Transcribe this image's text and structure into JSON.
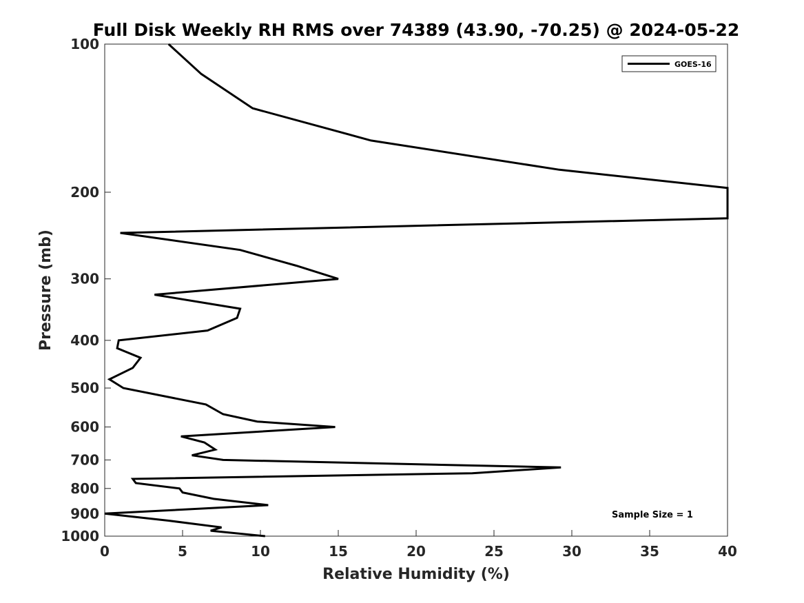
{
  "chart_data": {
    "type": "line",
    "title": "Full Disk Weekly RH RMS over 74389 (43.90, -70.25) @ 2024-05-22",
    "xlabel": "Relative Humidity (%)",
    "ylabel": "Pressure (mb)",
    "xlim": [
      0,
      40
    ],
    "ylim": [
      100,
      1000
    ],
    "yscale": "log",
    "y_reversed": true,
    "xticks": [
      0,
      5,
      10,
      15,
      20,
      25,
      30,
      35,
      40
    ],
    "yticks": [
      100,
      200,
      300,
      400,
      500,
      600,
      700,
      800,
      900,
      1000
    ],
    "grid": false,
    "legend": {
      "position": "top-right",
      "entries": [
        "GOES-16"
      ]
    },
    "annotation": "Sample Size = 1",
    "series": [
      {
        "name": "GOES-16",
        "color": "#000000",
        "x": [
          4.1,
          6.2,
          9.5,
          17.1,
          29.2,
          40.0,
          40.0,
          1.0,
          8.7,
          12.3,
          15.0,
          3.2,
          8.7,
          8.5,
          6.6,
          0.9,
          0.8,
          2.3,
          1.8,
          0.3,
          1.2,
          6.5,
          7.6,
          9.8,
          14.8,
          4.9,
          6.4,
          7.1,
          5.6,
          7.6,
          29.3,
          23.6,
          1.8,
          2.0,
          4.8,
          5.0,
          7.0,
          10.5,
          0.0,
          4.1,
          7.5,
          6.8,
          10.3
        ],
        "y": [
          100,
          115,
          135,
          157,
          180,
          196,
          226,
          242,
          262,
          282,
          300,
          323,
          345,
          360,
          382,
          400,
          415,
          434,
          455,
          480,
          500,
          540,
          565,
          585,
          600,
          627,
          645,
          667,
          685,
          700,
          725,
          745,
          765,
          780,
          800,
          815,
          840,
          865,
          900,
          930,
          960,
          975,
          1000
        ]
      }
    ]
  }
}
